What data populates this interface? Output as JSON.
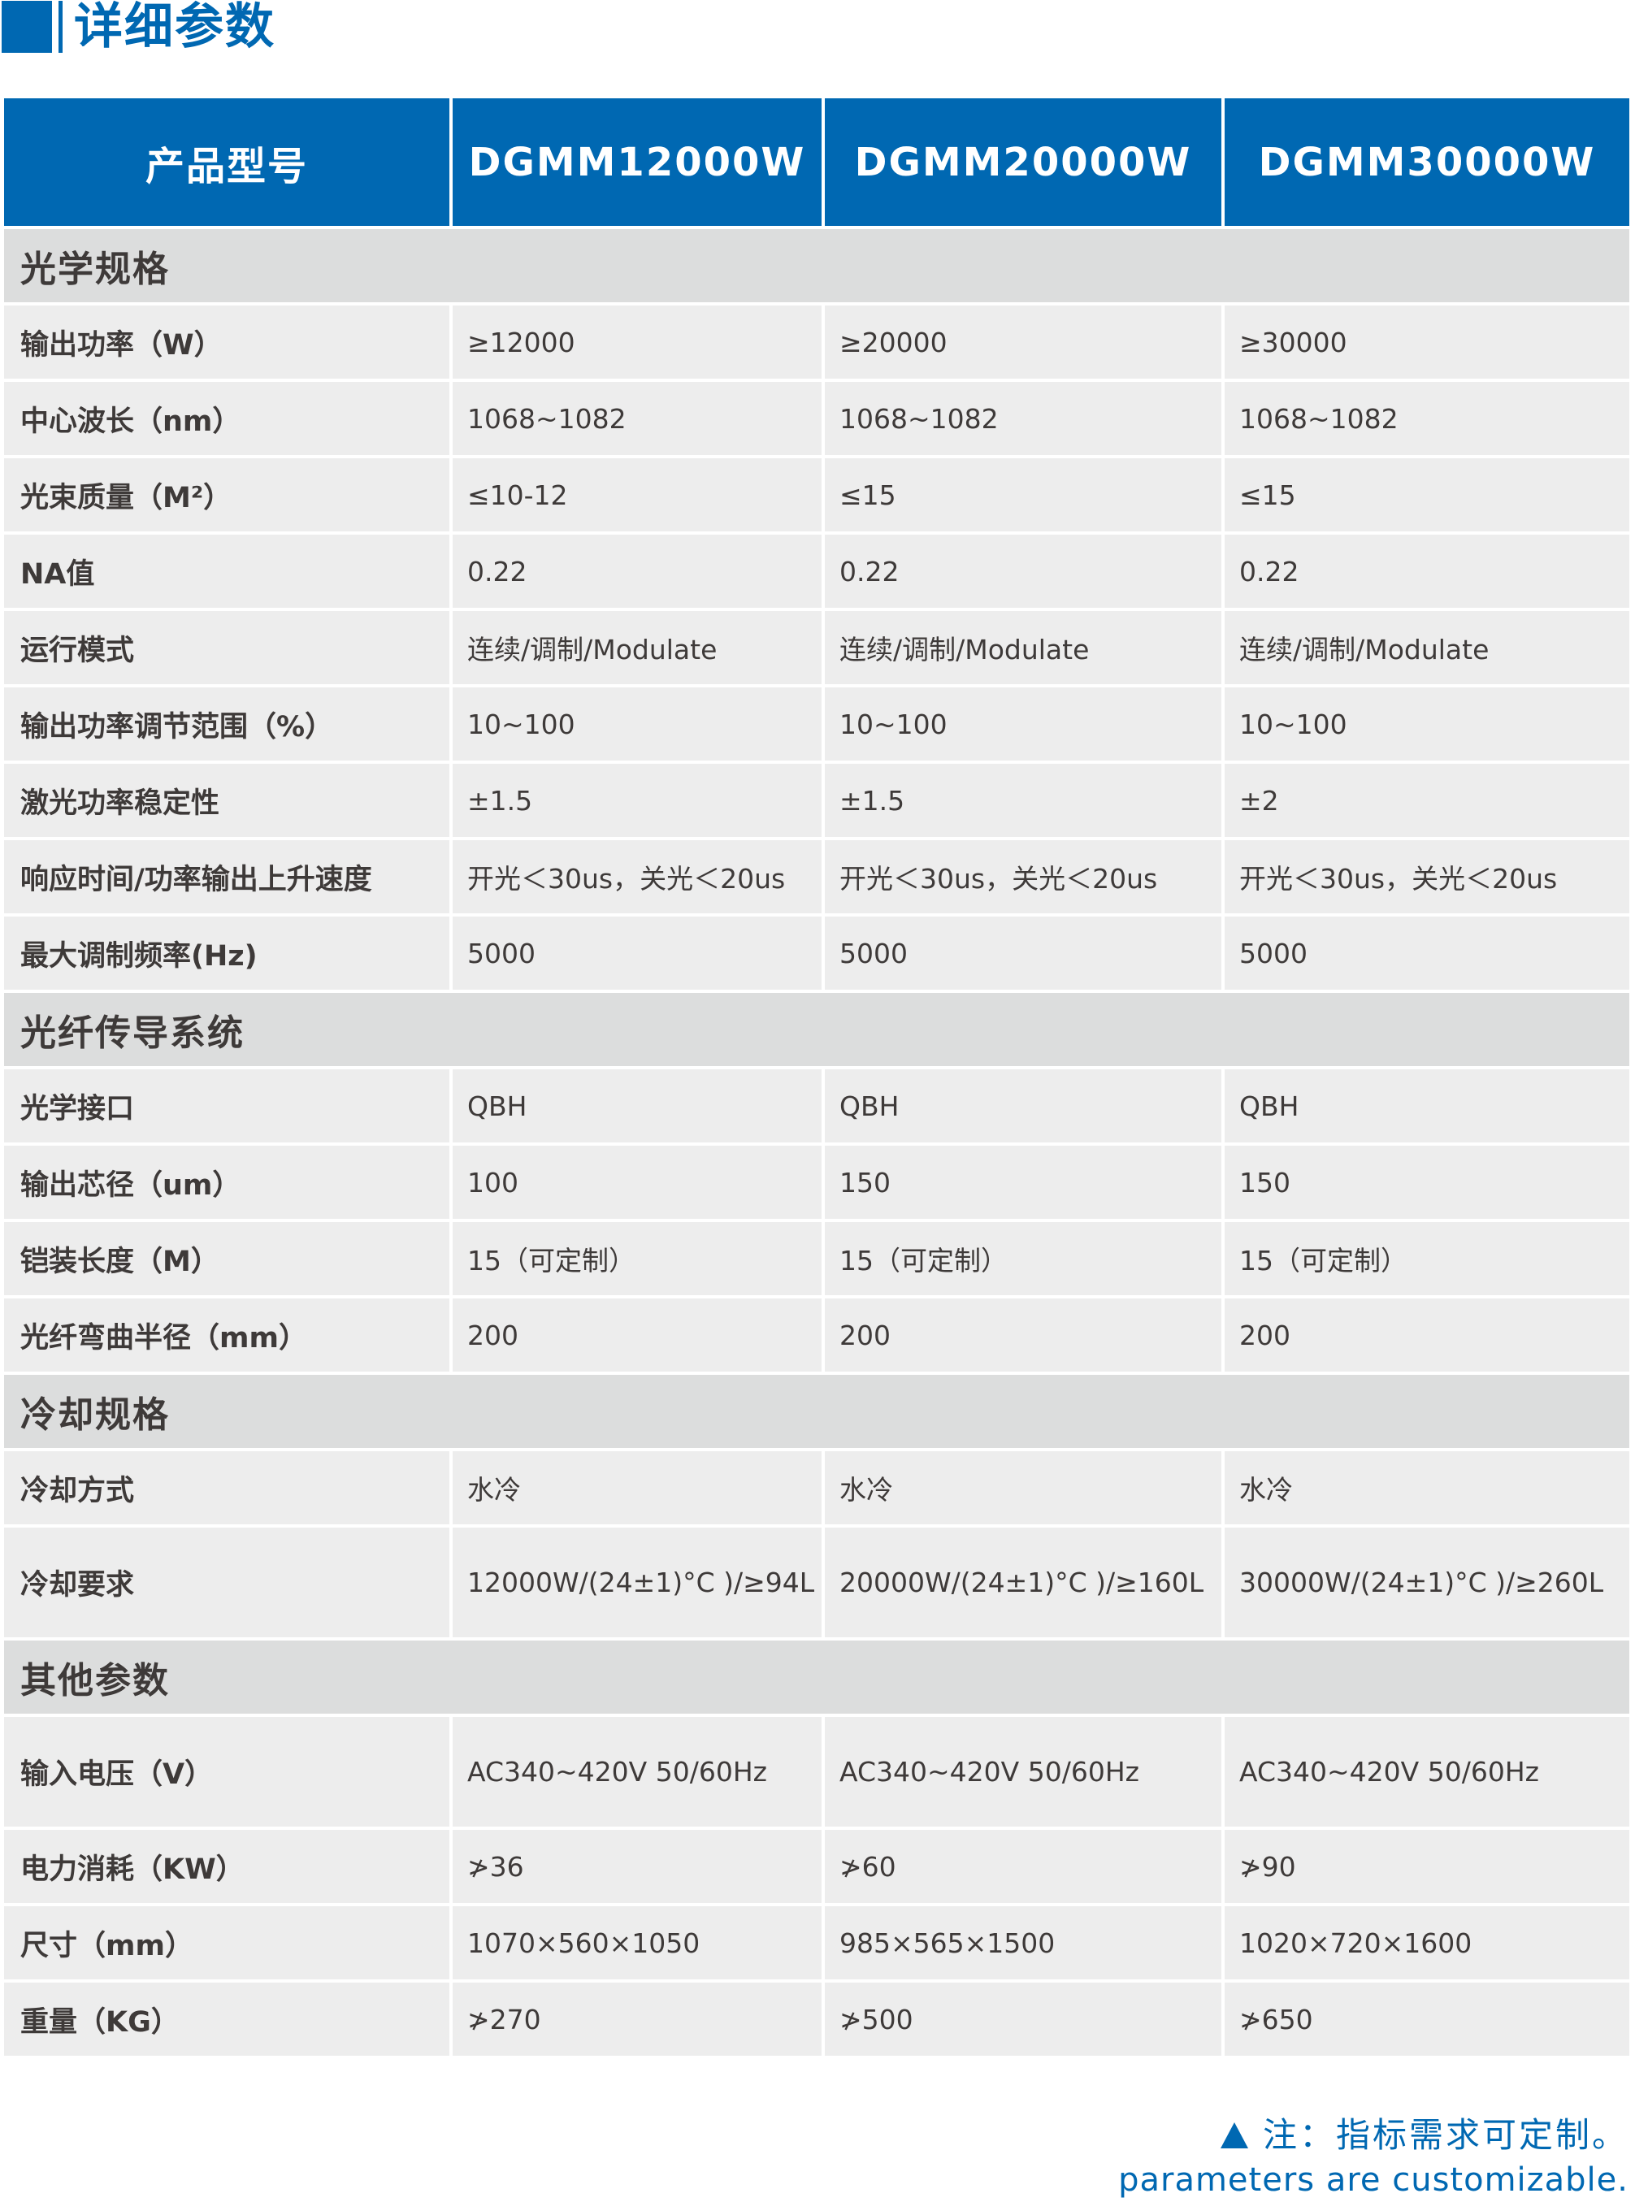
{
  "title": "详细参数",
  "header": [
    "产品型号",
    "DGMM12000W",
    "DGMM20000W",
    "DGMM30000W"
  ],
  "sections": [
    {
      "name": "光学规格",
      "rows": [
        {
          "label": "输出功率（W）",
          "values": [
            "≥12000",
            "≥20000",
            "≥30000"
          ]
        },
        {
          "label": "中心波长（nm）",
          "values": [
            "1068~1082",
            "1068~1082",
            "1068~1082"
          ]
        },
        {
          "label": "光束质量（M²）",
          "values": [
            "≤10-12",
            "≤15",
            "≤15"
          ]
        },
        {
          "label": "NA值",
          "values": [
            "0.22",
            "0.22",
            "0.22"
          ]
        },
        {
          "label": "运行模式",
          "values": [
            "连续/调制/Modulate",
            "连续/调制/Modulate",
            "连续/调制/Modulate"
          ]
        },
        {
          "label": "输出功率调节范围（%）",
          "values": [
            "10~100",
            "10~100",
            "10~100"
          ]
        },
        {
          "label": "激光功率稳定性",
          "values": [
            "±1.5",
            "±1.5",
            "±2"
          ]
        },
        {
          "label": "响应时间/功率输出上升速度",
          "values": [
            "开光＜30us，关光＜20us",
            "开光＜30us，关光＜20us",
            "开光＜30us，关光＜20us"
          ]
        },
        {
          "label": "最大调制频率(Hz)",
          "values": [
            "5000",
            "5000",
            "5000"
          ]
        }
      ]
    },
    {
      "name": "光纤传导系统",
      "rows": [
        {
          "label": "光学接口",
          "values": [
            "QBH",
            "QBH",
            "QBH"
          ]
        },
        {
          "label": "输出芯径（um）",
          "values": [
            "100",
            "150",
            "150"
          ]
        },
        {
          "label": "铠装长度（M）",
          "values": [
            "15（可定制）",
            "15（可定制）",
            "15（可定制）"
          ]
        },
        {
          "label": "光纤弯曲半径（mm）",
          "values": [
            "200",
            "200",
            "200"
          ]
        }
      ]
    },
    {
      "name": "冷却规格",
      "rows": [
        {
          "label": "冷却方式",
          "values": [
            "水冷",
            "水冷",
            "水冷"
          ]
        },
        {
          "label": "冷却要求",
          "values": [
            "12000W/(24±1)°C )/≥94L",
            "20000W/(24±1)°C )/≥160L",
            "30000W/(24±1)°C )/≥260L"
          ],
          "tall": true
        }
      ]
    },
    {
      "name": "其他参数",
      "rows": [
        {
          "label": "输入电压（V）",
          "values": [
            "AC340~420V 50/60Hz",
            "AC340~420V 50/60Hz",
            "AC340~420V 50/60Hz"
          ],
          "tall": true
        },
        {
          "label": "电力消耗（KW）",
          "values": [
            "≯36",
            "≯60",
            "≯90"
          ]
        },
        {
          "label": "尺寸（mm）",
          "values": [
            "1070×560×1050",
            "985×565×1500",
            "1020×720×1600"
          ]
        },
        {
          "label": "重量（KG）",
          "values": [
            "≯270",
            "≯500",
            "≯650"
          ]
        }
      ]
    }
  ],
  "footer": {
    "note": "注：指标需求可定制。",
    "note_en": "parameters are customizable."
  },
  "colors": {
    "brand": "#0068b2",
    "section_bg": "#dcdddd",
    "cell_bg": "#ededed",
    "text": "#3e3a39"
  }
}
